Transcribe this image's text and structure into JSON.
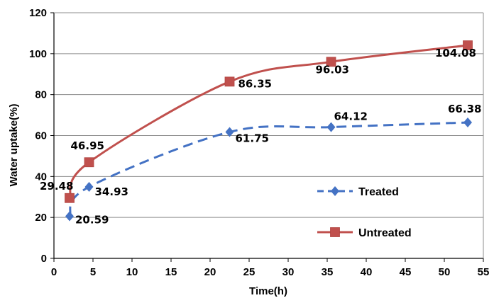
{
  "chart_data": {
    "type": "line",
    "title": "",
    "xlabel": "Time(h)",
    "ylabel": "Water uptake(%)",
    "xlim": [
      0,
      55
    ],
    "ylim": [
      0,
      120
    ],
    "x_ticks": [
      "0",
      "5",
      "10",
      "15",
      "20",
      "25",
      "30",
      "35",
      "40",
      "45",
      "50",
      "55"
    ],
    "y_ticks": [
      "0",
      "20",
      "40",
      "60",
      "80",
      "100",
      "120"
    ],
    "grid": "horizontal",
    "legend_position": "lower-right",
    "series": [
      {
        "name": "Treated",
        "color": "#4472C4",
        "line_style": "dashed",
        "marker": "diamond",
        "x": [
          2,
          4.5,
          22.5,
          35.5,
          53
        ],
        "y": [
          20.59,
          34.93,
          61.75,
          64.12,
          66.38
        ],
        "labels": [
          "20.59",
          "34.93",
          "61.75",
          "64.12",
          "66.38"
        ]
      },
      {
        "name": "Untreated",
        "color": "#C0504D",
        "line_style": "solid",
        "marker": "square",
        "x": [
          2,
          4.5,
          22.5,
          35.5,
          53
        ],
        "y": [
          29.48,
          46.95,
          86.35,
          96.03,
          104.08
        ],
        "labels": [
          "29.48",
          "46.95",
          "86.35",
          "96.03",
          "104.08"
        ]
      }
    ]
  }
}
